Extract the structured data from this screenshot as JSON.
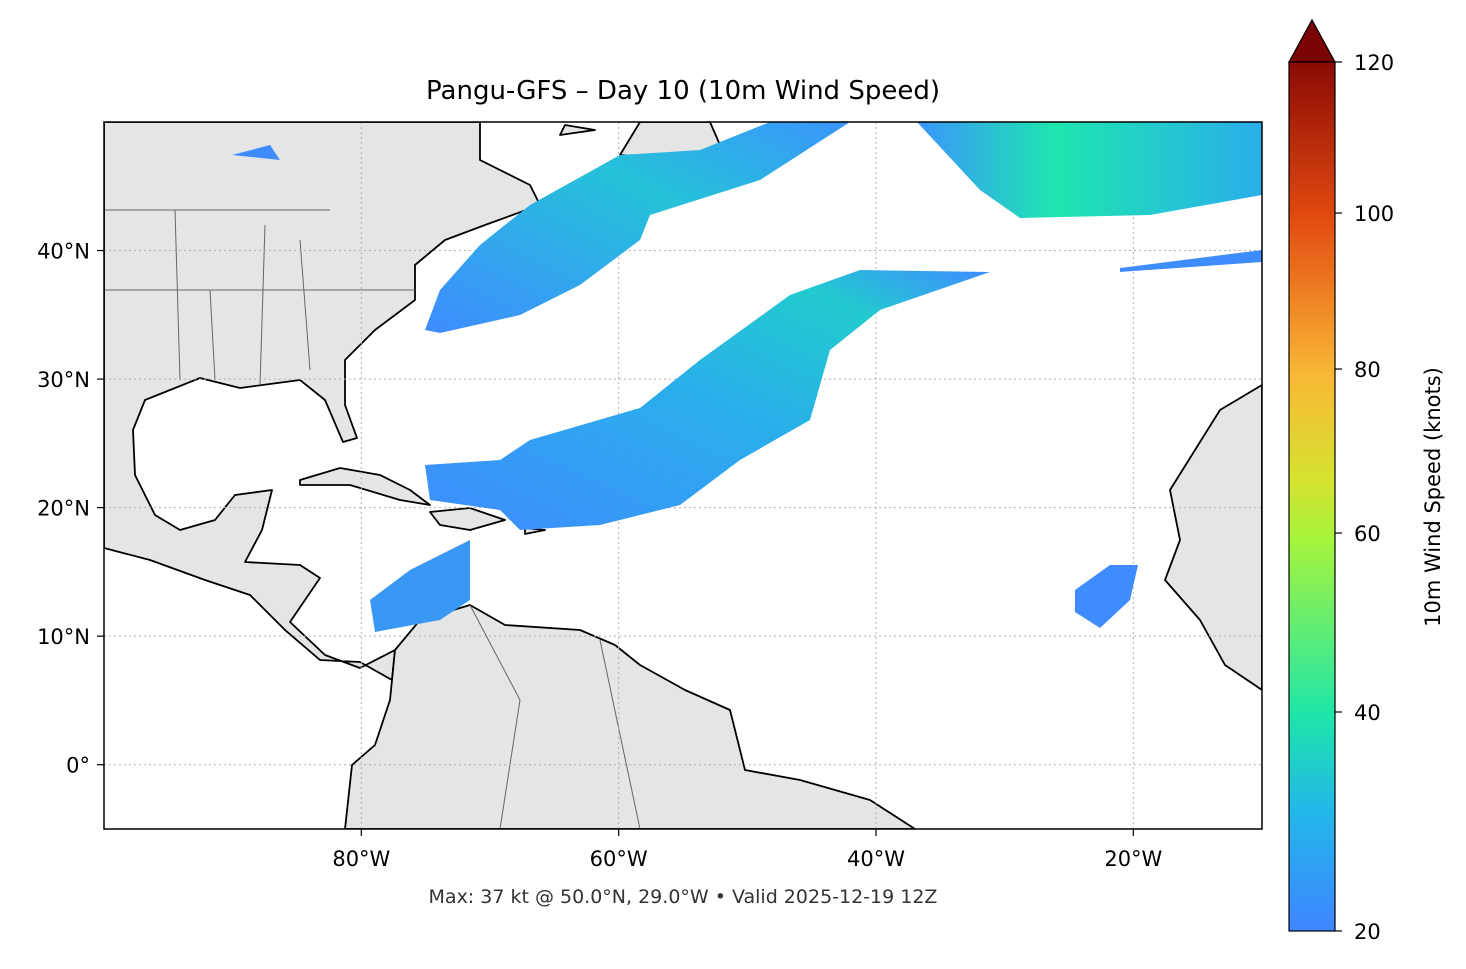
{
  "title": "Pangu-GFS – Day 10 (10m Wind Speed)",
  "footnote": "Max: 37 kt @ 50.0°N, 29.0°W • Valid 2025-12-19 12Z",
  "map": {
    "extent": {
      "lon_min": -100,
      "lon_max": -10,
      "lat_min": -5,
      "lat_max": 50
    },
    "land_color": "#e5e5e5",
    "ocean_color": "#ffffff",
    "gridlines": "dotted",
    "lon_ticks": [
      {
        "value": -80,
        "label": "80°W"
      },
      {
        "value": -60,
        "label": "60°W"
      },
      {
        "value": -40,
        "label": "40°W"
      },
      {
        "value": -20,
        "label": "20°W"
      }
    ],
    "lat_ticks": [
      {
        "value": 40,
        "label": "40°N"
      },
      {
        "value": 30,
        "label": "30°N"
      },
      {
        "value": 20,
        "label": "20°N"
      },
      {
        "value": 10,
        "label": "10°N"
      },
      {
        "value": 0,
        "label": "0°"
      }
    ]
  },
  "colorbar": {
    "label": "10m Wind Speed (knots)",
    "range": [
      20,
      120
    ],
    "extend": "max",
    "colormap": "turbo",
    "ticks": [
      {
        "value": 20,
        "label": "20"
      },
      {
        "value": 40,
        "label": "40"
      },
      {
        "value": 60,
        "label": "60"
      },
      {
        "value": 80,
        "label": "80"
      },
      {
        "value": 100,
        "label": "100"
      },
      {
        "value": 120,
        "label": "120"
      }
    ],
    "colors": [
      "#3f85ff",
      "#1fe6a8",
      "#a6f43c",
      "#f9b836",
      "#e24b10",
      "#7a0403"
    ]
  }
}
